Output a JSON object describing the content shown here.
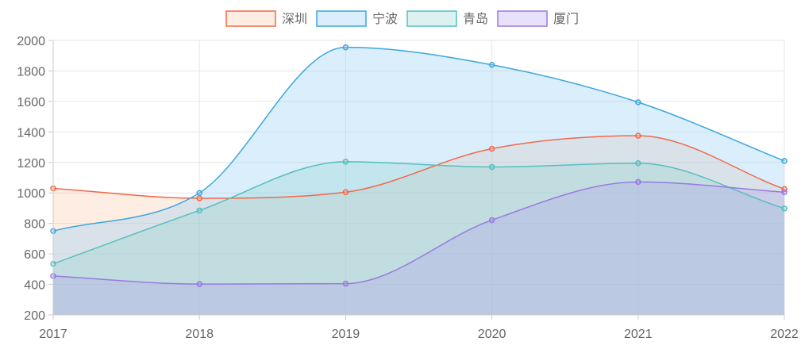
{
  "chart_data": {
    "type": "area",
    "title": "",
    "xlabel": "",
    "ylabel": "",
    "x": [
      "2017",
      "2018",
      "2019",
      "2020",
      "2021",
      "2022"
    ],
    "ylim": [
      200,
      2000
    ],
    "yticks": [
      "200",
      "400",
      "600",
      "800",
      "1000",
      "1200",
      "1400",
      "1600",
      "1800",
      "2000"
    ],
    "grid": true,
    "legend_position": "top-center",
    "smooth": true,
    "series": [
      {
        "name": "深圳",
        "values": [
          1030,
          965,
          1005,
          1290,
          1375,
          1025
        ],
        "color": "#f0694a",
        "fill": "rgba(248, 196, 160, 0.30)"
      },
      {
        "name": "宁波",
        "values": [
          750,
          1000,
          1955,
          1840,
          1595,
          1210
        ],
        "color": "#3ca6dc",
        "fill": "rgba(150, 205, 245, 0.35)"
      },
      {
        "name": "青岛",
        "values": [
          535,
          885,
          1205,
          1170,
          1195,
          898
        ],
        "color": "#55bfbf",
        "fill": "rgba(140, 210, 205, 0.30)"
      },
      {
        "name": "厦门",
        "values": [
          455,
          402,
          405,
          822,
          1072,
          1005
        ],
        "color": "#9a79e0",
        "fill": "rgba(175, 155, 235, 0.30)"
      }
    ]
  }
}
